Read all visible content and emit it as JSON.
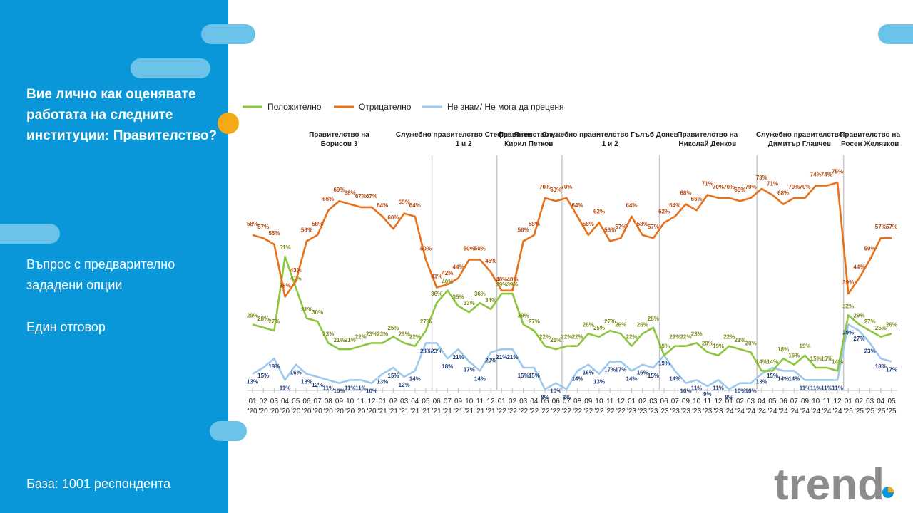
{
  "sidebar": {
    "title": "Вие лично как оценявате работата на следните институции: Правителство?",
    "note1": "Въпрос с предварително зададени опции",
    "note2": "Един отговор",
    "base": "База:  1001 респондента"
  },
  "logo": {
    "text": "trend"
  },
  "colors": {
    "positive": "#8cc63f",
    "negative": "#e8711c",
    "unknown": "#9cc9ee",
    "sidebar": "#0a97d9"
  },
  "chart_data": {
    "type": "line",
    "title": "Вие лично как оценявате работата на следните институции: Правителство?",
    "ylim": [
      0,
      100
    ],
    "x": [
      "01 '20",
      "02 '20",
      "03 '20",
      "04 '20",
      "05 '20",
      "06 '20",
      "07 '20",
      "08 '20",
      "09 '20",
      "10 '20",
      "11 '20",
      "12 '20",
      "01 '21",
      "02 '21",
      "03 '21",
      "04 '21",
      "05 '21",
      "06 '21",
      "07 '21",
      "09 '21",
      "10 '21",
      "11 '21",
      "12 '21",
      "01 '22",
      "02 '22",
      "03 '22",
      "04 '22",
      "05 '22",
      "06 '22",
      "07 '22",
      "08 '22",
      "09 '22",
      "10 '22",
      "11 '22",
      "12 '22",
      "01 '23",
      "02 '23",
      "03 '23",
      "06 '23",
      "07 '23",
      "09 '23",
      "10 '23",
      "11 '23",
      "12 '23",
      "01 '24",
      "02 '24",
      "03 '24",
      "04 '24",
      "05 '24",
      "06 '24",
      "07 '24",
      "09 '24",
      "10 '24",
      "11 '24",
      "12 '24",
      "01 '25",
      "02 '25",
      "03 '25",
      "04 '25",
      "05 '25"
    ],
    "series": [
      {
        "name": "Положително",
        "values": [
          29,
          28,
          27,
          51,
          41,
          31,
          30,
          23,
          21,
          21,
          22,
          23,
          23,
          25,
          23,
          22,
          27,
          36,
          40,
          35,
          33,
          36,
          34,
          39,
          39,
          29,
          27,
          22,
          21,
          22,
          22,
          26,
          25,
          27,
          26,
          22,
          26,
          28,
          19,
          22,
          22,
          23,
          20,
          19,
          22,
          21,
          20,
          14,
          14,
          18,
          16,
          19,
          15,
          15,
          14,
          32,
          29,
          27,
          25,
          26
        ]
      },
      {
        "name": "Отрицателно",
        "values": [
          58,
          57,
          55,
          38,
          43,
          56,
          58,
          66,
          69,
          68,
          67,
          67,
          64,
          60,
          65,
          64,
          50,
          41,
          42,
          44,
          50,
          50,
          46,
          40,
          40,
          56,
          58,
          70,
          69,
          70,
          64,
          58,
          62,
          56,
          57,
          64,
          58,
          57,
          62,
          64,
          68,
          66,
          71,
          70,
          70,
          69,
          70,
          73,
          71,
          68,
          70,
          70,
          74,
          74,
          75,
          39,
          44,
          50,
          57,
          57
        ]
      },
      {
        "name": "Не знам/ Не мога да преценя",
        "values": [
          13,
          15,
          18,
          11,
          16,
          13,
          12,
          11,
          10,
          11,
          11,
          10,
          13,
          15,
          12,
          14,
          23,
          23,
          18,
          21,
          17,
          14,
          20,
          21,
          21,
          15,
          15,
          8,
          10,
          8,
          14,
          16,
          13,
          17,
          17,
          14,
          16,
          15,
          19,
          14,
          10,
          11,
          9,
          11,
          8,
          10,
          10,
          13,
          15,
          14,
          14,
          11,
          11,
          11,
          11,
          29,
          27,
          23,
          18,
          17
        ]
      }
    ],
    "periods": [
      {
        "label": "Правителство на Борисов 3",
        "start": 0,
        "end": 16
      },
      {
        "label": "Служебно правителство Стефан Янев 1 и 2",
        "start": 17,
        "end": 22
      },
      {
        "label": "Правителство на Кирил Петков",
        "start": 23,
        "end": 28
      },
      {
        "label": "Служебно правителство Гълъб Донев 1 и 2",
        "start": 29,
        "end": 37
      },
      {
        "label": "Правителство на Николай Денков",
        "start": 38,
        "end": 46
      },
      {
        "label": "Служебно правителство Димитър Главчев",
        "start": 47,
        "end": 54
      },
      {
        "label": "Правителство на Росен Желязков",
        "start": 55,
        "end": 59
      }
    ],
    "value_suffix": "%"
  }
}
